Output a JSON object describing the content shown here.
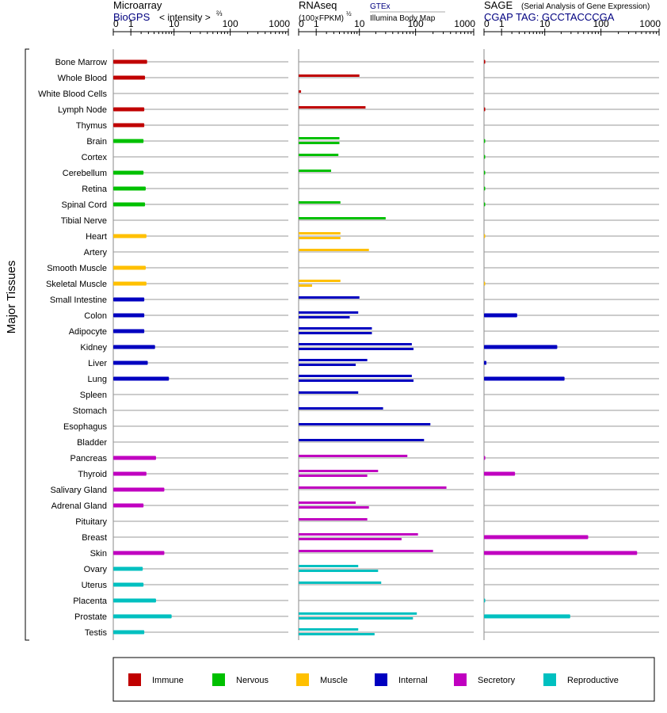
{
  "panels": {
    "microarray": {
      "title": "Microarray",
      "source": "BioGPS",
      "unit_prefix": "< intensity >",
      "unit_power": "⅔"
    },
    "rnaseq": {
      "title": "RNAseq",
      "unit": "(100×FPKM)",
      "unit_power": "½",
      "source": "GTEx",
      "subsource": "Illumina Body Map"
    },
    "sage": {
      "title": "SAGE",
      "subtitle": "(Serial Analysis of Gene Expression)",
      "source": "CGAP TAG: GCCTACCCGA"
    }
  },
  "y_axis_label": "Major Tissues",
  "colors": {
    "Immune": "#c00000",
    "Nervous": "#00c000",
    "Muscle": "#ffc000",
    "Internal": "#0000c0",
    "Secretory": "#c000c0",
    "Reproductive": "#00c0c0"
  },
  "legend": [
    "Immune",
    "Nervous",
    "Muscle",
    "Internal",
    "Secretory",
    "Reproductive"
  ],
  "chart_data": {
    "type": "bar",
    "scale": "log(x+1)",
    "xlim": [
      0,
      1000
    ],
    "xticks": [
      "0",
      "1",
      "10",
      "100",
      "1000"
    ],
    "categories": [
      "Bone Marrow",
      "Whole Blood",
      "White Blood Cells",
      "Lymph Node",
      "Thymus",
      "Brain",
      "Cortex",
      "Cerebellum",
      "Retina",
      "Spinal Cord",
      "Tibial Nerve",
      "Heart",
      "Artery",
      "Smooth Muscle",
      "Skeletal Muscle",
      "Small Intestine",
      "Colon",
      "Adipocyte",
      "Kidney",
      "Liver",
      "Lung",
      "Spleen",
      "Stomach",
      "Esophagus",
      "Bladder",
      "Pancreas",
      "Thyroid",
      "Salivary Gland",
      "Adrenal Gland",
      "Pituitary",
      "Breast",
      "Skin",
      "Ovary",
      "Uterus",
      "Placenta",
      "Prostate",
      "Testis"
    ],
    "groups": [
      "Immune",
      "Immune",
      "Immune",
      "Immune",
      "Immune",
      "Nervous",
      "Nervous",
      "Nervous",
      "Nervous",
      "Nervous",
      "Nervous",
      "Muscle",
      "Muscle",
      "Muscle",
      "Muscle",
      "Internal",
      "Internal",
      "Internal",
      "Internal",
      "Internal",
      "Internal",
      "Internal",
      "Internal",
      "Internal",
      "Internal",
      "Secretory",
      "Secretory",
      "Secretory",
      "Secretory",
      "Secretory",
      "Secretory",
      "Secretory",
      "Reproductive",
      "Reproductive",
      "Reproductive",
      "Reproductive",
      "Reproductive"
    ],
    "series": [
      {
        "name": "Microarray",
        "values": [
          2.8,
          2.5,
          null,
          2.4,
          2.4,
          2.3,
          null,
          2.3,
          2.6,
          2.5,
          null,
          2.7,
          null,
          2.6,
          2.7,
          2.4,
          2.4,
          2.4,
          4.2,
          2.9,
          8.0,
          null,
          null,
          null,
          null,
          4.4,
          2.7,
          6.5,
          2.3,
          null,
          null,
          6.5,
          2.2,
          2.3,
          4.4,
          9.0,
          2.4
        ]
      },
      {
        "name": "RNAseq",
        "values": [
          null,
          [
            10
          ],
          [
            0.1
          ],
          [
            13
          ],
          null,
          [
            4.0,
            4.0
          ],
          [
            3.8
          ],
          [
            2.6
          ],
          null,
          [
            4.2
          ],
          [
            30
          ],
          [
            4.2,
            4.2
          ],
          [
            15
          ],
          null,
          [
            4.2,
            0.7
          ],
          [
            10
          ],
          [
            9.5,
            6.5
          ],
          [
            17,
            17
          ],
          [
            86,
            92
          ],
          [
            14,
            8.5
          ],
          [
            86,
            92
          ],
          [
            9.5
          ],
          [
            27
          ],
          [
            180
          ],
          [
            140
          ],
          [
            72
          ],
          [
            22,
            14
          ],
          [
            340
          ],
          [
            8.5,
            15
          ],
          [
            14
          ],
          [
            110,
            57
          ],
          [
            200
          ],
          [
            9.5,
            22
          ],
          [
            25
          ],
          null,
          [
            105,
            90
          ],
          [
            9.5,
            19
          ]
        ]
      },
      {
        "name": "SAGE",
        "values": [
          0.05,
          null,
          null,
          0.05,
          null,
          0.02,
          0.02,
          0.02,
          0.02,
          0.02,
          null,
          0.01,
          null,
          null,
          0.01,
          null,
          2.7,
          null,
          17,
          0.1,
          23,
          null,
          null,
          null,
          null,
          0.05,
          2.4,
          null,
          null,
          null,
          60,
          420,
          null,
          null,
          0.02,
          29,
          null
        ]
      }
    ]
  }
}
